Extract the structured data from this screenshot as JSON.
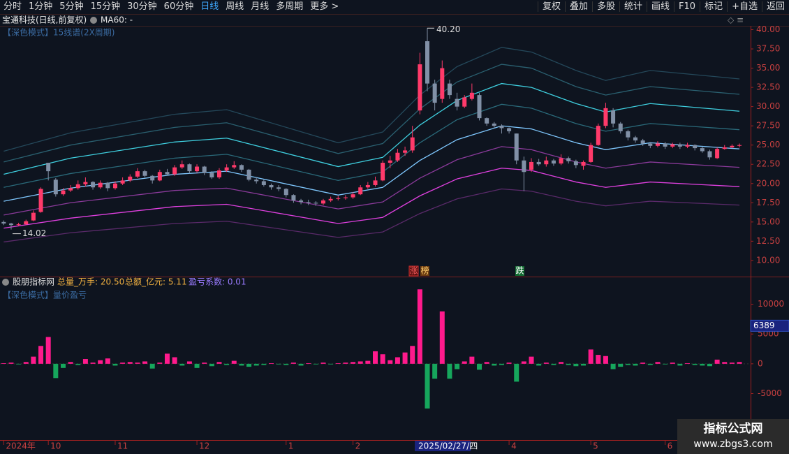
{
  "toolbar": {
    "left": [
      "分时",
      "1分钟",
      "5分钟",
      "15分钟",
      "30分钟",
      "60分钟",
      "日线",
      "周线",
      "月线",
      "多周期",
      "更多 >"
    ],
    "active": "日线",
    "right": [
      "复权",
      "叠加",
      "多股",
      "统计",
      "画线",
      "F10",
      "标记",
      "+自选",
      "返回"
    ]
  },
  "header": {
    "stock": "宝通科技(日线,前复权)",
    "ma": "MA60: -"
  },
  "indicator": {
    "name": "股朋指标网",
    "items": [
      "总量_万手: 20.50",
      "总额_亿元: 5.11",
      "盈亏系数: 0.01"
    ]
  },
  "signals": [
    "涨",
    "榜",
    "跌"
  ],
  "watermark": {
    "title": "指标公式网",
    "url": "www.zbgs3.com"
  },
  "chart_data": [
    {
      "type": "candlestick",
      "title": "【深色模式】15线谱(2X周期)",
      "xlim": [
        -0.5,
        100.5
      ],
      "ylim": [
        8.9,
        40.5
      ],
      "yticks": [
        {
          "value": 10,
          "label": "10.00"
        },
        {
          "value": 12.5,
          "label": "12.50"
        },
        {
          "value": 15,
          "label": "15.00"
        },
        {
          "value": 17.5,
          "label": "17.50"
        },
        {
          "value": 20,
          "label": "20.00"
        },
        {
          "value": 22.5,
          "label": "22.50"
        },
        {
          "value": 25,
          "label": "25.00"
        },
        {
          "value": 27.5,
          "label": "27.50"
        },
        {
          "value": 30,
          "label": "30.00"
        },
        {
          "value": 32.5,
          "label": "32.50"
        },
        {
          "value": 35,
          "label": "35.00"
        },
        {
          "value": 37.5,
          "label": "37.50"
        },
        {
          "value": 40,
          "label": "40.00"
        }
      ],
      "up_color": "#ff3a6a",
      "down_color": "#8190a6",
      "open": [
        15,
        14.8,
        14.6,
        14.7,
        15.2,
        16.3,
        22.7,
        20.5,
        18.6,
        19.1,
        19.4,
        19.9,
        20.2,
        19.5,
        20.1,
        19.4,
        20.0,
        20.4,
        20.9,
        21.6,
        21.0,
        20.4,
        21.5,
        21.2,
        22.1,
        22.5,
        21.6,
        22.2,
        21.4,
        20.8,
        21.7,
        22.1,
        22.4,
        21.8,
        20.5,
        20.3,
        19.8,
        19.5,
        19.3,
        18.5,
        17.8,
        17.6,
        17.5,
        17.4,
        17.8,
        18.0,
        18.1,
        18.2,
        18.6,
        19.5,
        19.8,
        20.4,
        22.7,
        23.0,
        24.0,
        24.3,
        29.5,
        38.5,
        33,
        31,
        33,
        31,
        30,
        31,
        31.5,
        28.5,
        27.8,
        27.5,
        27.2,
        26.5,
        23,
        21.8,
        22.8,
        22.5,
        23,
        22.6,
        23.3,
        22.9,
        22.3,
        22.8,
        25,
        27.5,
        29.5,
        27.8,
        26.8,
        26,
        25.6,
        25.2,
        24.9,
        25.2,
        24.8,
        25.1,
        24.8,
        25,
        24.6,
        24.2,
        23.3,
        24.5,
        24.7,
        24.9
      ],
      "high": [
        15.2,
        14.9,
        14.9,
        15.3,
        16.5,
        19.5,
        22.7,
        20.7,
        19.4,
        19.8,
        20.4,
        20.8,
        20.3,
        20.4,
        20.2,
        20.3,
        20.8,
        21.2,
        22.0,
        21.8,
        21.1,
        21.8,
        21.9,
        22.4,
        23.0,
        22.6,
        22.5,
        22.3,
        21.6,
        22.0,
        22.5,
        22.9,
        22.5,
        21.9,
        20.8,
        20.5,
        20.0,
        19.8,
        19.4,
        18.6,
        18.0,
        17.9,
        17.7,
        18.0,
        18.3,
        18.4,
        18.5,
        18.9,
        19.8,
        20.2,
        20.9,
        23.0,
        23.6,
        24.5,
        24.8,
        27.5,
        37,
        40.2,
        33.5,
        36,
        33.5,
        31.8,
        31.5,
        33,
        31.8,
        28.6,
        28,
        27.7,
        27.3,
        26.5,
        23.5,
        23.3,
        23.2,
        23.5,
        23.2,
        23.8,
        23.5,
        23.1,
        23,
        25.3,
        27.8,
        30.5,
        29.8,
        28,
        27,
        26.2,
        25.8,
        25.4,
        25.5,
        25.4,
        25.3,
        25.3,
        25.3,
        25.1,
        24.8,
        24.4,
        24.7,
        25,
        25.1,
        25.2
      ],
      "low": [
        14.6,
        14.02,
        14.5,
        14.6,
        15.1,
        16.2,
        20.4,
        18.3,
        18.4,
        18.9,
        19.2,
        19.6,
        19.2,
        19.3,
        19.0,
        19.2,
        19.8,
        20.2,
        20.7,
        20.8,
        20.0,
        20.3,
        21.0,
        21.0,
        21.9,
        21.3,
        21.4,
        21.1,
        20.6,
        20.6,
        21.5,
        21.9,
        21.5,
        20.3,
        20.0,
        19.6,
        19.2,
        19.0,
        18.2,
        17.5,
        17.3,
        17.2,
        17.1,
        17.2,
        17.6,
        17.8,
        17.9,
        18.0,
        18.5,
        19.3,
        19.6,
        20.3,
        22.0,
        22.8,
        23.6,
        24.0,
        29,
        32,
        29.5,
        30.5,
        31,
        29.5,
        29.8,
        30.8,
        28.2,
        27.5,
        27.2,
        26.5,
        26.5,
        22.5,
        19,
        21.5,
        22.3,
        22.2,
        22.3,
        22.4,
        22.6,
        22.0,
        21.8,
        22.7,
        24.9,
        27.2,
        27.3,
        26.5,
        25.6,
        25.3,
        24.9,
        24.6,
        24.7,
        24.5,
        24.6,
        24.5,
        24.6,
        24.3,
        24,
        23.1,
        23.2,
        24.4,
        24.6,
        24.7
      ],
      "close": [
        14.8,
        14.6,
        14.7,
        15.1,
        16.2,
        19.3,
        21.6,
        18.6,
        19.1,
        19.4,
        19.9,
        20.2,
        19.5,
        20.1,
        19.4,
        20.0,
        20.4,
        20.9,
        21.6,
        21.0,
        20.4,
        21.5,
        21.2,
        22.1,
        22.5,
        21.6,
        22.2,
        21.4,
        20.8,
        21.7,
        22.1,
        22.4,
        21.8,
        20.5,
        20.3,
        19.8,
        19.5,
        19.3,
        18.5,
        17.8,
        17.6,
        17.5,
        17.4,
        17.8,
        18.0,
        18.1,
        18.2,
        18.6,
        19.5,
        19.8,
        20.4,
        22.7,
        23.0,
        24.0,
        24.3,
        26.0,
        35.5,
        33,
        30.5,
        35,
        31.5,
        30,
        31.2,
        31.8,
        28.5,
        27.8,
        27.5,
        27.2,
        26.8,
        23,
        21.5,
        22.8,
        22.5,
        23,
        22.6,
        23.3,
        22.9,
        22.4,
        22.8,
        25,
        27.5,
        29.8,
        27.8,
        26.8,
        26,
        25.6,
        25.2,
        24.9,
        25.2,
        24.8,
        25.1,
        24.8,
        25,
        24.6,
        24.2,
        23.4,
        24.5,
        24.7,
        24.9,
        25
      ],
      "high_label": {
        "value": 40.2,
        "label": "40.20"
      },
      "low_label": {
        "value": 14.02,
        "label": "14.02"
      },
      "band_x": [
        0,
        9,
        23,
        30,
        45,
        51,
        56,
        61,
        67,
        71,
        77,
        81,
        87,
        99
      ],
      "bands": [
        {
          "color": "#5a2a6a",
          "values": [
            12.4,
            13.6,
            14.8,
            15.1,
            13.0,
            13.7,
            16.1,
            18.0,
            19.3,
            19.0,
            17.7,
            17.1,
            17.7,
            17.2
          ]
        },
        {
          "color": "#e040e0",
          "values": [
            14.2,
            15.5,
            17.0,
            17.3,
            14.8,
            15.6,
            18.4,
            20.6,
            22.0,
            21.7,
            20.2,
            19.5,
            20.2,
            19.6
          ]
        },
        {
          "color": "#8a3a9a",
          "values": [
            15.9,
            17.5,
            19.1,
            19.4,
            16.7,
            17.6,
            20.7,
            23.1,
            24.8,
            24.4,
            22.8,
            22.0,
            22.8,
            22.1
          ]
        },
        {
          "color": "#7fc8ff",
          "values": [
            17.7,
            19.4,
            21.2,
            21.6,
            18.5,
            19.5,
            23.0,
            25.7,
            27.5,
            27.1,
            25.3,
            24.4,
            25.3,
            24.5
          ]
        },
        {
          "color": "#2a6a7a",
          "values": [
            19.5,
            21.3,
            23.3,
            23.8,
            20.4,
            21.5,
            25.3,
            28.3,
            30.3,
            29.8,
            27.8,
            26.8,
            27.8,
            27.0
          ]
        },
        {
          "color": "#3fd0e0",
          "values": [
            21.2,
            23.3,
            25.4,
            25.9,
            22.2,
            23.4,
            27.6,
            30.8,
            33.0,
            32.5,
            30.4,
            29.3,
            30.4,
            29.4
          ]
        },
        {
          "color": "#2a6070",
          "values": [
            22.8,
            25.0,
            27.3,
            27.9,
            23.9,
            25.2,
            29.7,
            33.2,
            35.5,
            35.0,
            32.6,
            31.5,
            32.6,
            31.6
          ]
        },
        {
          "color": "#24485a",
          "values": [
            24.2,
            26.6,
            29.0,
            29.6,
            25.3,
            26.7,
            31.5,
            35.2,
            37.7,
            37.1,
            34.7,
            33.4,
            34.7,
            33.6
          ]
        }
      ]
    },
    {
      "type": "bar",
      "title": "【深色模式】量价盈亏",
      "xlim": [
        -0.5,
        100.5
      ],
      "ylim": [
        -12800,
        13000
      ],
      "yticks": [
        -5000,
        0,
        5000,
        10000
      ],
      "marker": 6389,
      "pos_color": "#ff1a8c",
      "neg_color": "#16a65c",
      "values": [
        100,
        200,
        -100,
        300,
        1200,
        3000,
        4500,
        -2400,
        -700,
        300,
        -200,
        800,
        200,
        600,
        900,
        -300,
        200,
        300,
        200,
        400,
        -800,
        200,
        1700,
        1100,
        -300,
        400,
        -700,
        200,
        -400,
        300,
        -200,
        500,
        -300,
        -500,
        -300,
        -200,
        100,
        -100,
        -200,
        200,
        -300,
        100,
        -100,
        200,
        -100,
        100,
        200,
        300,
        400,
        500,
        2100,
        1600,
        600,
        1100,
        1900,
        3000,
        12500,
        -7500,
        -2500,
        8800,
        -2500,
        -900,
        400,
        1200,
        -1000,
        300,
        -300,
        -200,
        200,
        -3000,
        400,
        1200,
        -300,
        200,
        -200,
        300,
        -200,
        -400,
        -300,
        2400,
        1500,
        1300,
        -900,
        -500,
        -200,
        -300,
        200,
        -200,
        300,
        -100,
        200,
        -300,
        100,
        -200,
        -300,
        -400,
        700,
        300,
        200,
        300
      ],
      "xticks": [
        {
          "value": 0,
          "label": "2024年"
        },
        {
          "value": 6,
          "label": "10"
        },
        {
          "value": 15,
          "label": "11"
        },
        {
          "value": 26,
          "label": "12"
        },
        {
          "value": 38,
          "label": "1"
        },
        {
          "value": 47,
          "label": "2"
        },
        {
          "value": 55.5,
          "label": "2025/02/27/四"
        },
        {
          "value": 68,
          "label": "4"
        },
        {
          "value": 79,
          "label": "5"
        },
        {
          "value": 89,
          "label": "6"
        }
      ]
    }
  ]
}
